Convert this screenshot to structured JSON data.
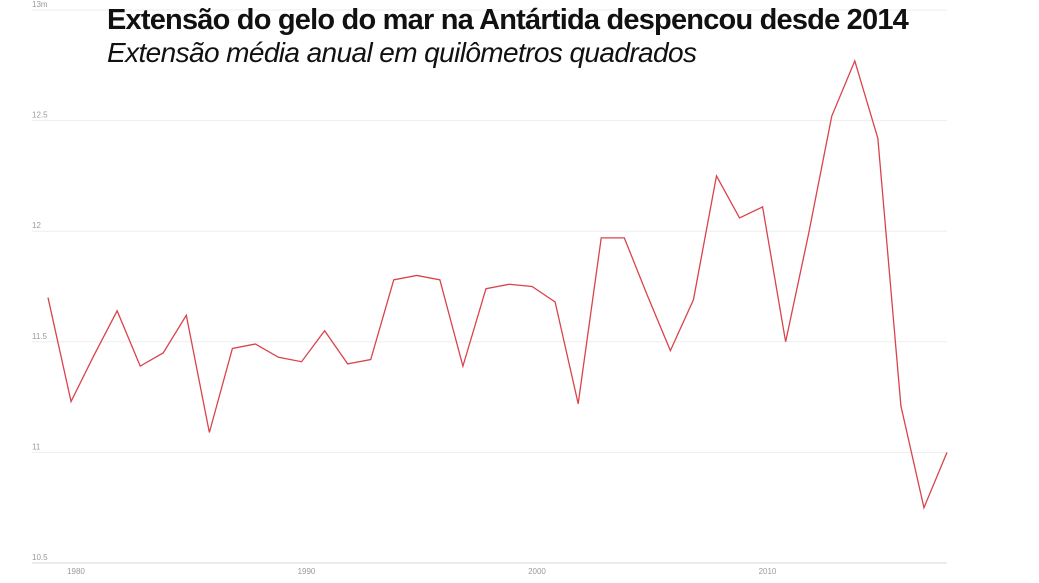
{
  "header": {
    "title": "Extensão do gelo do mar na Antártida despencou desde 2014",
    "subtitle": "Extensão média anual em quilômetros quadrados"
  },
  "chart_data": {
    "type": "line",
    "title": "Extensão do gelo do mar na Antártida despencou desde 2014",
    "subtitle": "Extensão média anual em quilômetros quadrados",
    "xlabel": "",
    "ylabel": "",
    "x": [
      1979,
      1980,
      1981,
      1982,
      1983,
      1984,
      1985,
      1986,
      1987,
      1988,
      1989,
      1990,
      1991,
      1992,
      1993,
      1994,
      1995,
      1996,
      1997,
      1998,
      1999,
      2000,
      2001,
      2002,
      2003,
      2004,
      2005,
      2006,
      2007,
      2008,
      2009,
      2010,
      2011,
      2012,
      2013,
      2014,
      2015,
      2016,
      2017,
      2018
    ],
    "series": [
      {
        "color": "#d9434b",
        "values": [
          11.7,
          11.23,
          11.44,
          11.64,
          11.39,
          11.45,
          11.62,
          11.09,
          11.47,
          11.49,
          11.43,
          11.41,
          11.55,
          11.4,
          11.42,
          11.78,
          11.8,
          11.78,
          11.39,
          11.74,
          11.76,
          11.75,
          11.68,
          11.22,
          11.97,
          11.97,
          11.71,
          11.46,
          11.69,
          12.25,
          12.06,
          12.11,
          11.5,
          11.99,
          12.52,
          12.77,
          12.42,
          11.21,
          10.75,
          11.0
        ]
      }
    ],
    "y_ticks": [
      "10.5",
      "11",
      "11.5",
      "12",
      "12.5",
      "13m"
    ],
    "x_ticks": [
      "1980",
      "1990",
      "2000",
      "2010"
    ],
    "x_tick_values": [
      1980,
      1990,
      2000,
      2010
    ],
    "ylim": [
      10.5,
      13
    ],
    "xlim": [
      1979,
      2018
    ],
    "grid": true,
    "legend": "none",
    "colors": {
      "line": "#d9434b",
      "grid": "#eeeeee",
      "tick_text": "#9a9a9a"
    }
  }
}
